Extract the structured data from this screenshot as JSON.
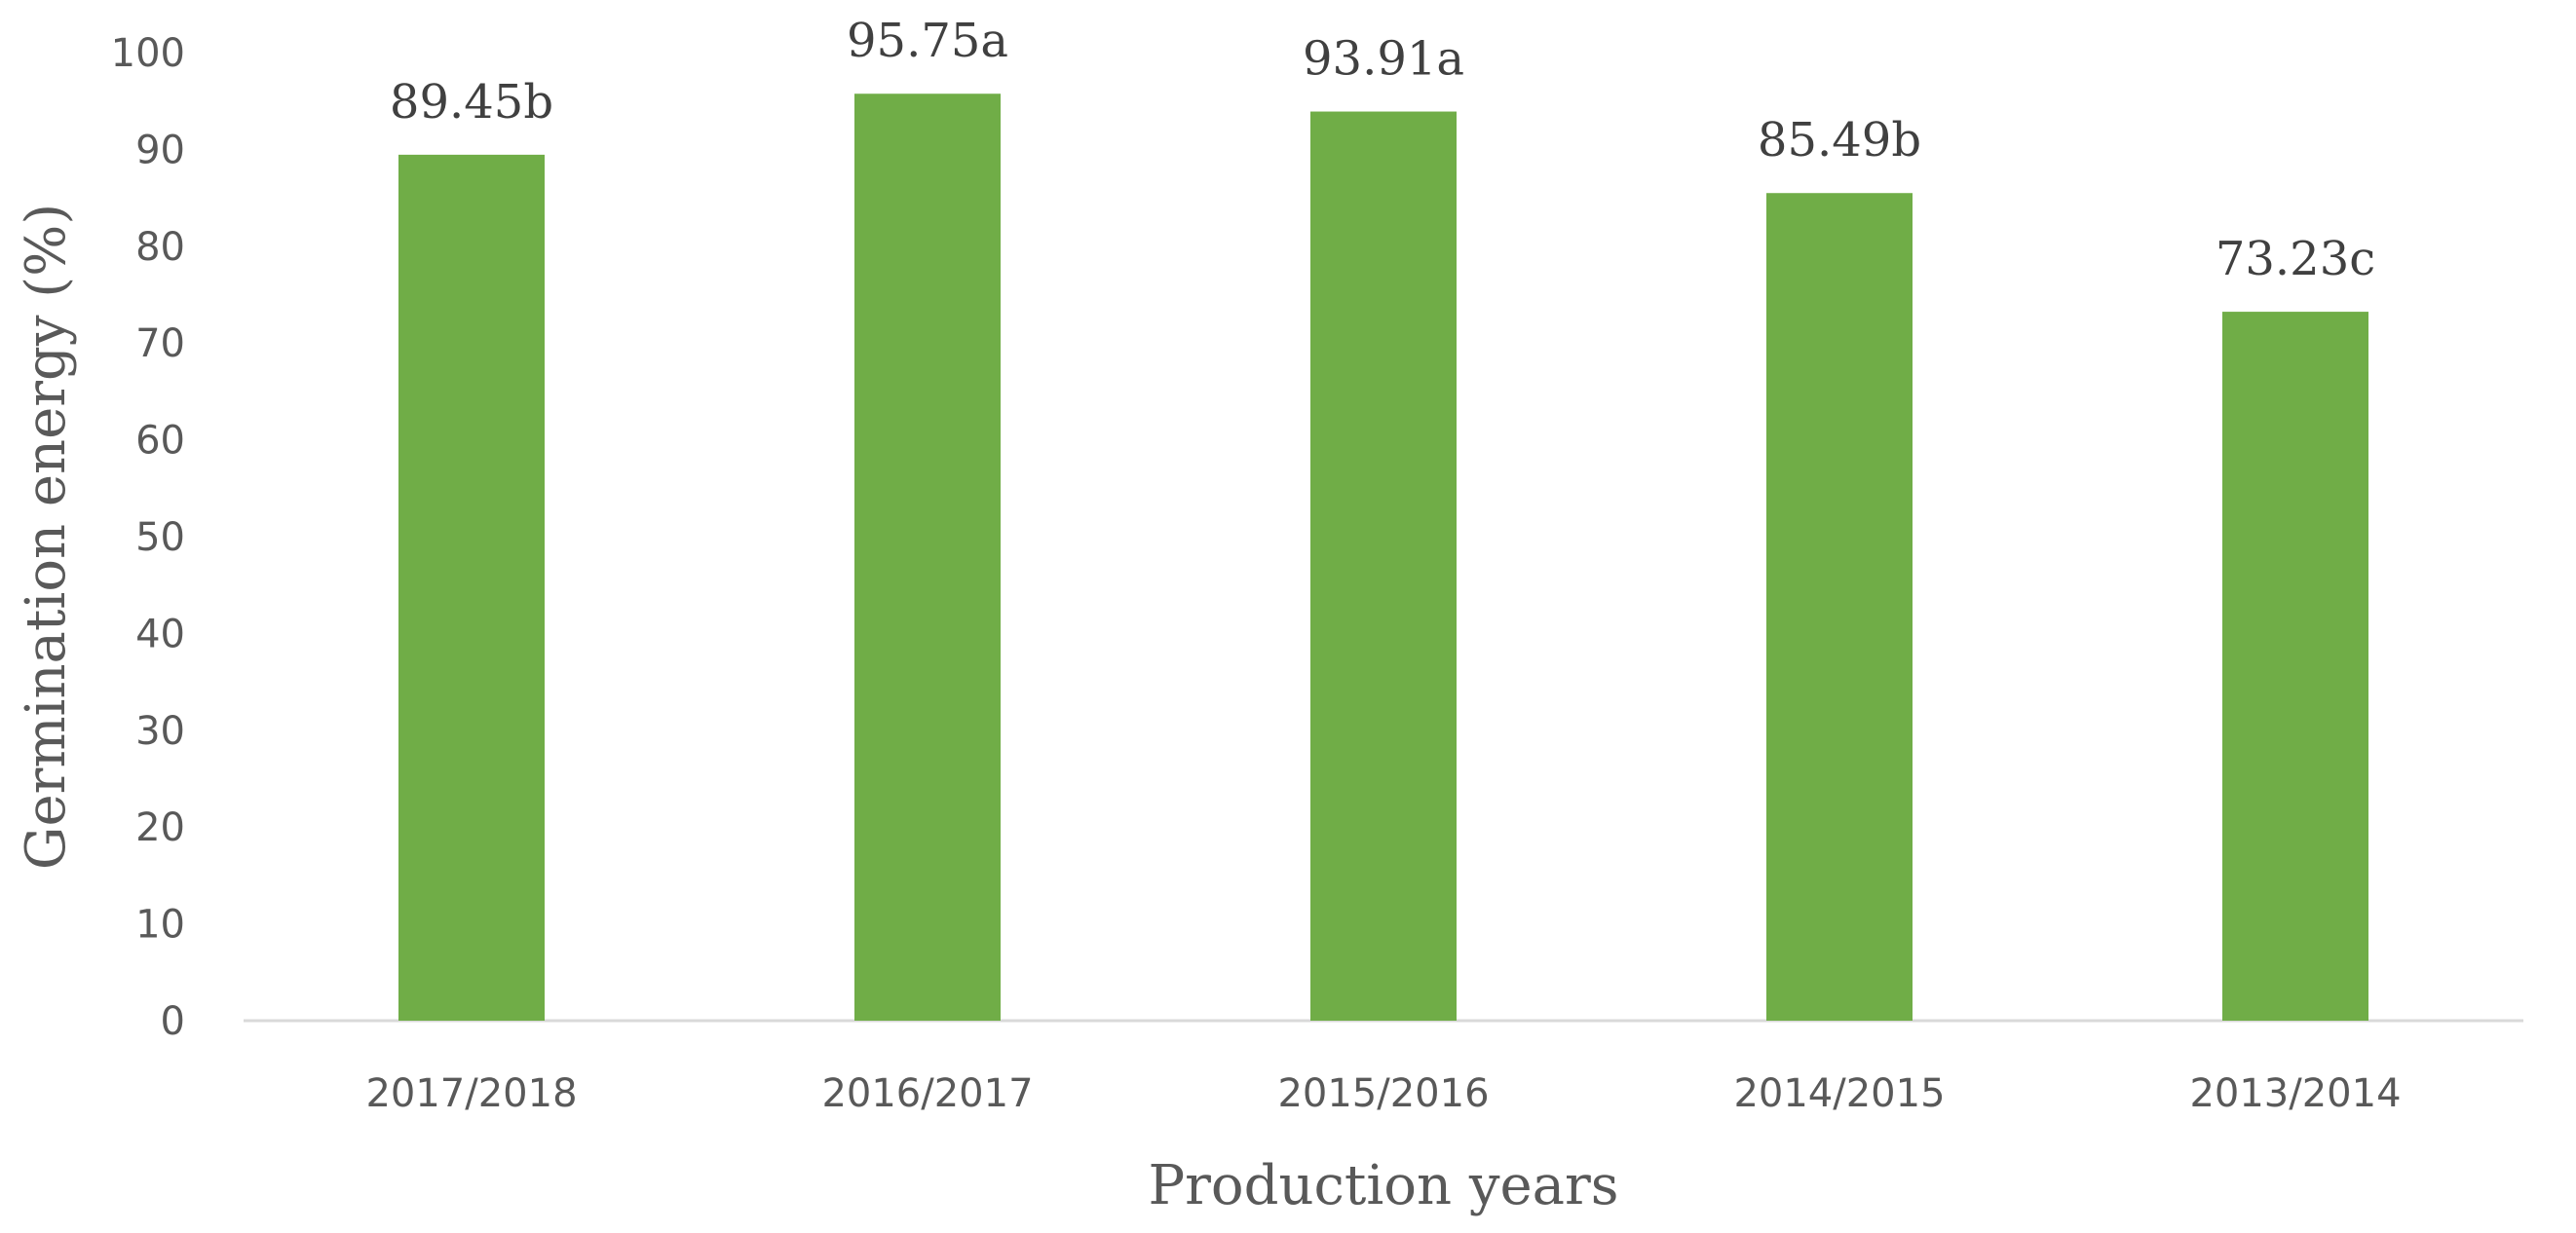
{
  "chart_data": {
    "type": "bar",
    "title": "",
    "xlabel": "Production years",
    "ylabel": "Germination energy (%)",
    "categories": [
      "2017/2018",
      "2016/2017",
      "2015/2016",
      "2014/2015",
      "2013/2014"
    ],
    "values": [
      89.45,
      95.75,
      93.91,
      85.49,
      73.23
    ],
    "data_labels": [
      "89.45b",
      "95.75a",
      "93.91a",
      "85.49b",
      "73.23c"
    ],
    "ylim": [
      0,
      100
    ],
    "yticks": [
      "0",
      "10",
      "20",
      "30",
      "40",
      "50",
      "60",
      "70",
      "80",
      "90",
      "100"
    ],
    "grid": false,
    "legend": "none",
    "bar_color": "#70ad47",
    "axis_color": "#d9d9d9"
  }
}
